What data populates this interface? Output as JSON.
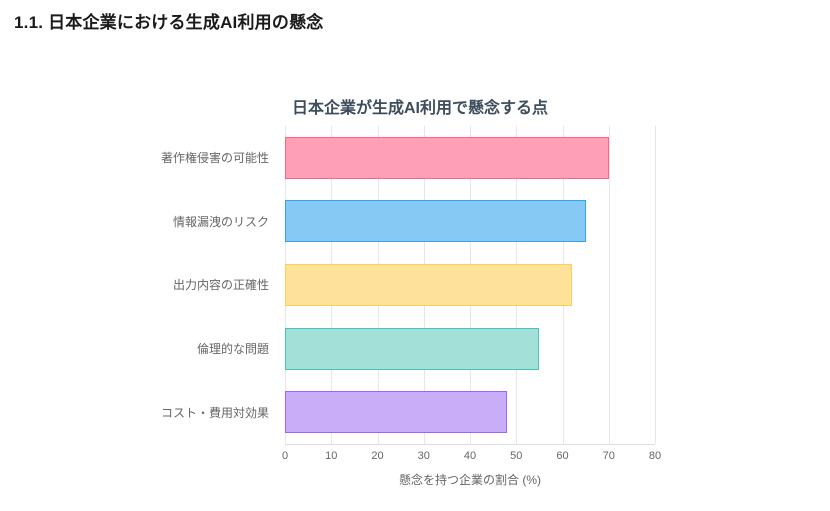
{
  "page": {
    "heading": "1.1. 日本企業における生成AI利用の懸念"
  },
  "chart_data": {
    "type": "bar",
    "orientation": "horizontal",
    "title": "日本企業が生成AI利用で懸念する点",
    "categories": [
      "著作権侵害の可能性",
      "情報漏洩のリスク",
      "出力内容の正確性",
      "倫理的な問題",
      "コスト・費用対効果"
    ],
    "values": [
      70,
      65,
      62,
      55,
      48
    ],
    "bar_colors": [
      {
        "fill": "#ff9fb5",
        "border": "#ff6384"
      },
      {
        "fill": "#85c9f4",
        "border": "#36a2eb"
      },
      {
        "fill": "#ffe29a",
        "border": "#ffce56"
      },
      {
        "fill": "#a3e0d8",
        "border": "#4bc0c0"
      },
      {
        "fill": "#c9adf9",
        "border": "#9966ff"
      }
    ],
    "xlabel": "懸念を持つ企業の割合 (%)",
    "xlim": [
      0,
      80
    ],
    "xticks": [
      0,
      10,
      20,
      30,
      40,
      50,
      60,
      70,
      80
    ],
    "grid": true,
    "legend": false,
    "title_color": "#3e4d5c",
    "axis_text_color": "#666666",
    "grid_color": "#e7e7e7"
  }
}
